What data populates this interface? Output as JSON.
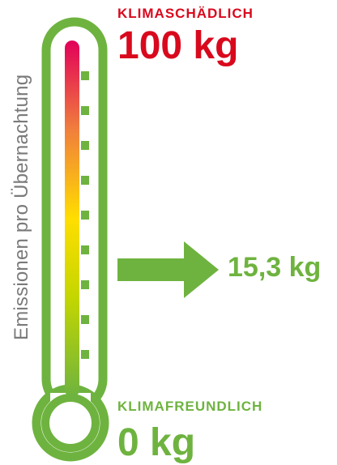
{
  "axis_label": "Emissionen pro Übernachtung",
  "scale": {
    "top_label": "KLIMASCHÄDLICH",
    "top_value": "100 kg",
    "bottom_label": "KLIMAFREUNDLICH",
    "bottom_value": "0 kg",
    "current_value": "15,3 kg"
  },
  "colors": {
    "outline": "#6eb33f",
    "gradient": [
      "#e2005a",
      "#f07f3c",
      "#ffde00",
      "#c4d600",
      "#6eb33f"
    ],
    "top_text": "#d9091d",
    "green_text": "#6eb33f",
    "axis_text": "#7a7a7a"
  }
}
